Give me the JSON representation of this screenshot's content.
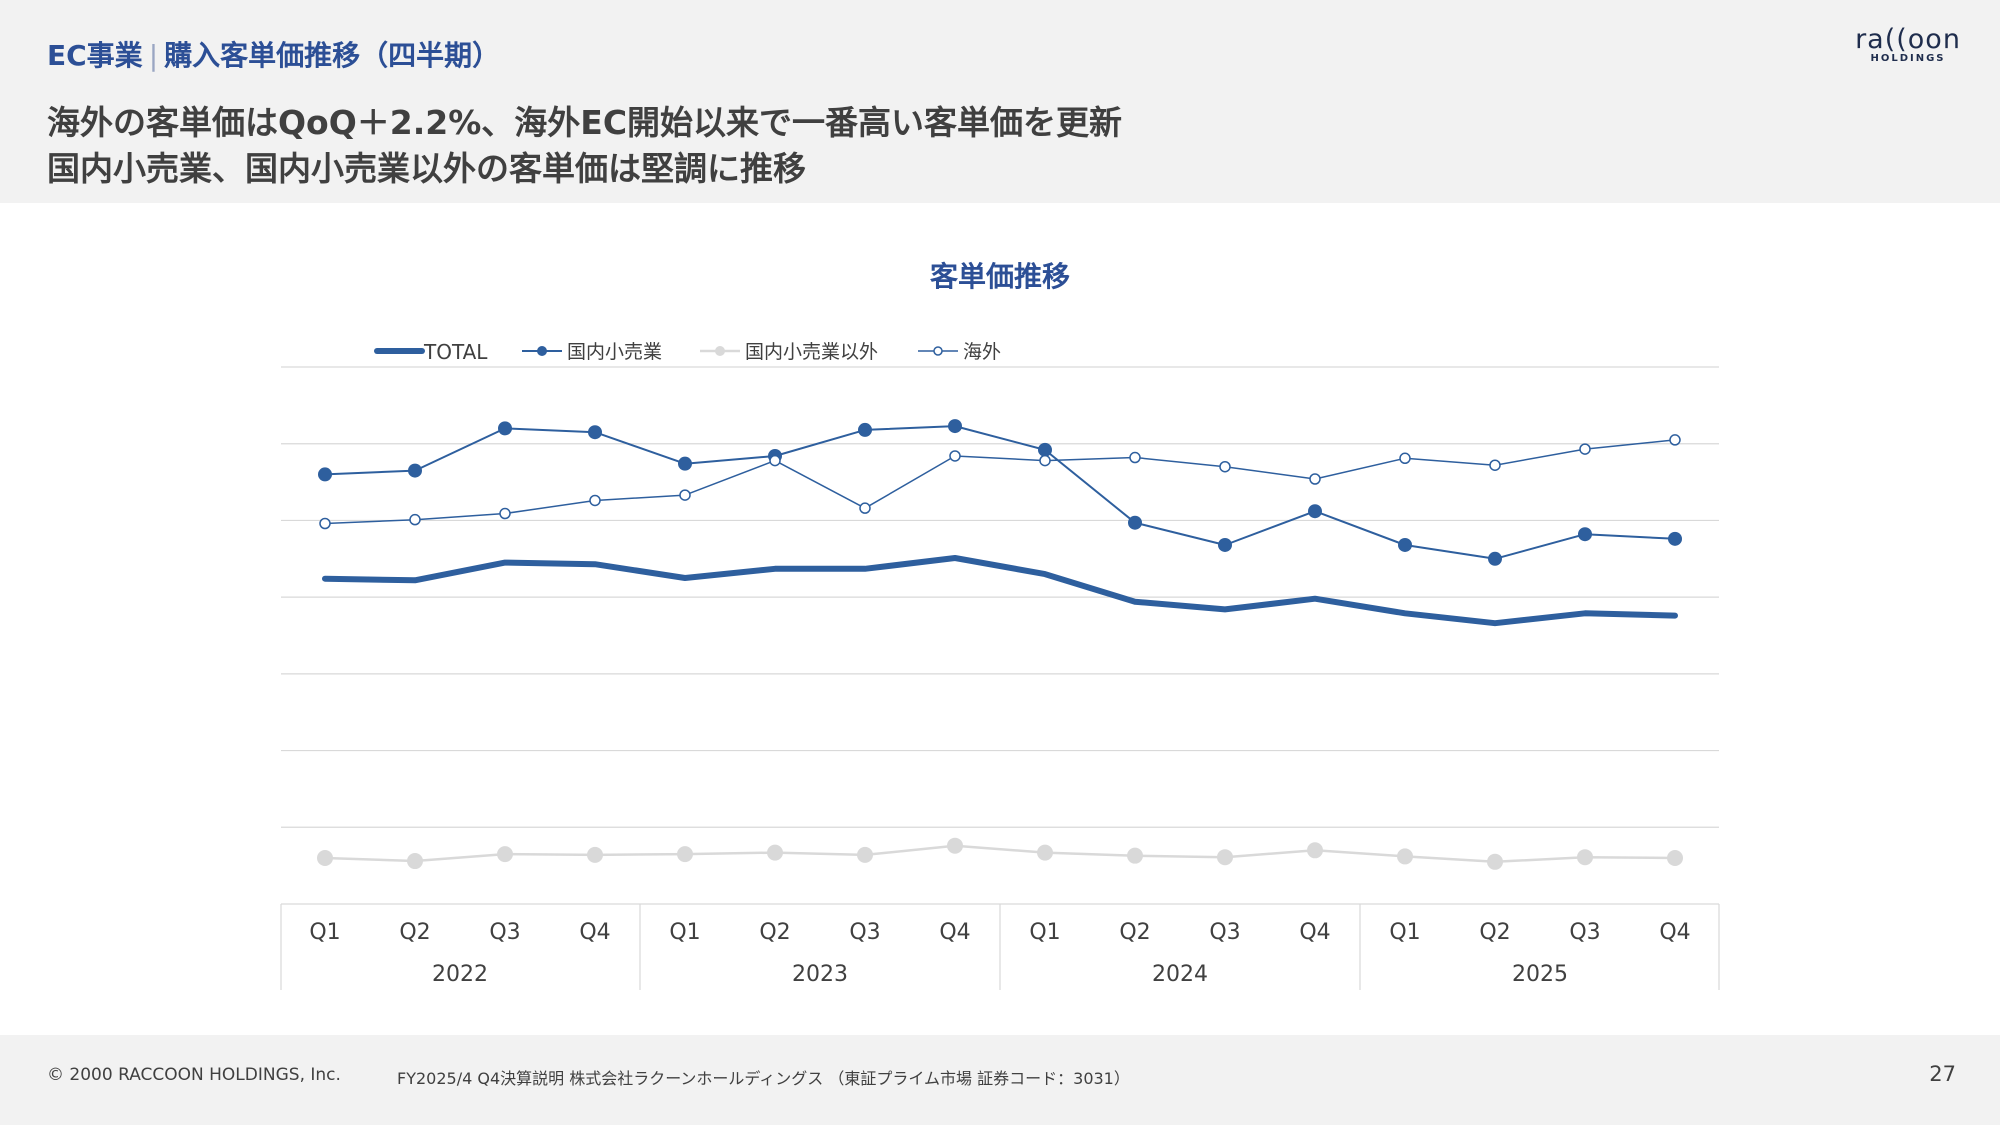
{
  "header": {
    "section_main": "EC事業",
    "section_divider": "|",
    "section_sub": "購入客単価推移（四半期）",
    "headline_line1": "海外の客単価はQoQ＋2.2%、海外EC開始以来で一番高い客単価を更新",
    "headline_line2": "国内小売業、国内小売業以外の客単価は堅調に推移",
    "logo_text": "ra((oon",
    "logo_sub": "HOLDINGS"
  },
  "footer": {
    "copyright": "© 2000 RACCOON HOLDINGS, Inc.",
    "note": "FY2025/4 Q4決算説明 株式会社ラクーンホールディングス （東証プライム市場 証券コード：3031）",
    "page": "27"
  },
  "colors": {
    "total": "#2e5f9e",
    "domestic_retail": "#2e5f9e",
    "domestic_other": "#d9d9d9",
    "overseas": "#2e5f9e",
    "title": "#2c4f96"
  },
  "chart_data": {
    "type": "line",
    "title": "客単価推移",
    "xlabel": "",
    "ylabel": "",
    "y_axis_labels_shown": false,
    "grid": "horizontal",
    "legend_position": "top-left",
    "ylim": [
      0,
      7
    ],
    "years": [
      "2022",
      "2023",
      "2024",
      "2025"
    ],
    "categories": [
      "Q1",
      "Q2",
      "Q3",
      "Q4",
      "Q1",
      "Q2",
      "Q3",
      "Q4",
      "Q1",
      "Q2",
      "Q3",
      "Q4",
      "Q1",
      "Q2",
      "Q3",
      "Q4"
    ],
    "series": [
      {
        "key": "domestic_retail",
        "name": "国内小売業",
        "style": "line-filled-marker",
        "values": [
          5.6,
          5.65,
          6.2,
          6.15,
          5.74,
          5.84,
          6.18,
          6.23,
          5.92,
          4.97,
          4.68,
          5.12,
          4.68,
          4.5,
          4.82,
          4.76
        ]
      },
      {
        "key": "overseas",
        "name": "海外",
        "style": "line-hollow-marker",
        "values": [
          4.96,
          5.01,
          5.09,
          5.26,
          5.33,
          5.78,
          5.16,
          5.84,
          5.78,
          5.82,
          5.7,
          5.54,
          5.81,
          5.72,
          5.93,
          6.05
        ]
      },
      {
        "key": "total",
        "name": "TOTAL",
        "style": "thick-line",
        "values": [
          4.24,
          4.22,
          4.45,
          4.43,
          4.25,
          4.37,
          4.37,
          4.51,
          4.3,
          3.94,
          3.84,
          3.98,
          3.79,
          3.66,
          3.79,
          3.76
        ]
      },
      {
        "key": "domestic_other",
        "name": "国内小売業以外",
        "style": "line-filled-marker-light",
        "values": [
          0.6,
          0.56,
          0.65,
          0.64,
          0.65,
          0.67,
          0.64,
          0.76,
          0.67,
          0.63,
          0.61,
          0.7,
          0.62,
          0.55,
          0.61,
          0.6
        ]
      }
    ],
    "legend_order": [
      "total",
      "domestic_retail",
      "domestic_other",
      "overseas"
    ]
  }
}
